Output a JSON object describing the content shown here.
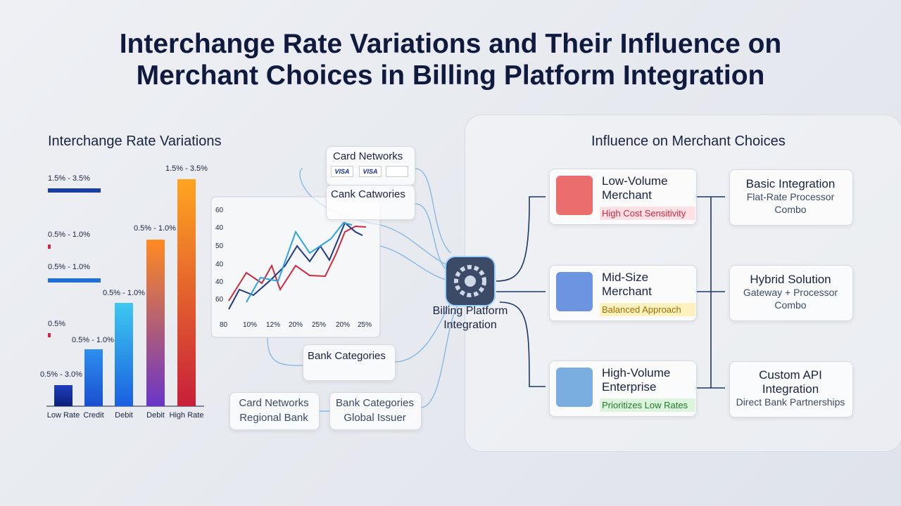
{
  "header": {
    "title": "Interchange Rate Variations and Their Influence on Merchant Choices in Billing Platform Integration"
  },
  "left_panel": {
    "heading": "Interchange Rate Variations",
    "bars": [
      {
        "label": "Low Rate",
        "range": "0.5% - 3.0%"
      },
      {
        "label": "Credit",
        "range": "0.5% - 1.0%"
      },
      {
        "label": "Debit",
        "range": "0.5% - 1.0%"
      },
      {
        "label": "Debit",
        "range": "0.5% - 1.0%"
      },
      {
        "label": "High Rate",
        "range": "1.5% - 3.5%"
      }
    ],
    "legend_labels": [
      "1.5% - 3.5%",
      "0.5% - 1.0%",
      "0.5% - 1.0%",
      "0.5%"
    ],
    "mini_chart": {
      "y_labels": [
        "60",
        "40",
        "50",
        "40",
        "40",
        "60"
      ],
      "x_labels": [
        "80",
        "10%",
        "12%",
        "20%",
        "25%",
        "20%",
        "25%"
      ]
    }
  },
  "sources": {
    "card_networks": {
      "title": "Card Networks",
      "logos": [
        "VISA",
        "VISA"
      ]
    },
    "cank_catwories": {
      "title": "Cank Catwories"
    },
    "bank_categories": {
      "title": "Bank Categories"
    },
    "bottom_boxes": [
      [
        "Card Networks",
        "Regional Bank"
      ],
      [
        "Bank Categories",
        "Global Issuer"
      ]
    ]
  },
  "hub": {
    "label": [
      "Billing Platform",
      "Integration"
    ]
  },
  "right_panel": {
    "heading": "Influence on Merchant Choices",
    "merchants": [
      {
        "name": [
          "Low-Volume",
          "Merchant"
        ],
        "tag": "High Cost Sensitivity"
      },
      {
        "name": [
          "Mid-Size",
          "Merchant"
        ],
        "tag": "Balanced Approach"
      },
      {
        "name": [
          "High-Volume",
          "Enterprise"
        ],
        "tag": "Prioritizes Low Rates"
      }
    ],
    "integrations": [
      {
        "title": [
          "Basic Integration"
        ],
        "subtitle": [
          "Flat-Rate Processor",
          "Combo"
        ]
      },
      {
        "title": [
          "Hybrid Solution"
        ],
        "subtitle": [
          "Gateway + Processor",
          "Combo"
        ]
      },
      {
        "title": [
          "Custom API",
          "Integration"
        ],
        "subtitle": [
          "Direct Bank Partnerships"
        ]
      }
    ]
  }
}
